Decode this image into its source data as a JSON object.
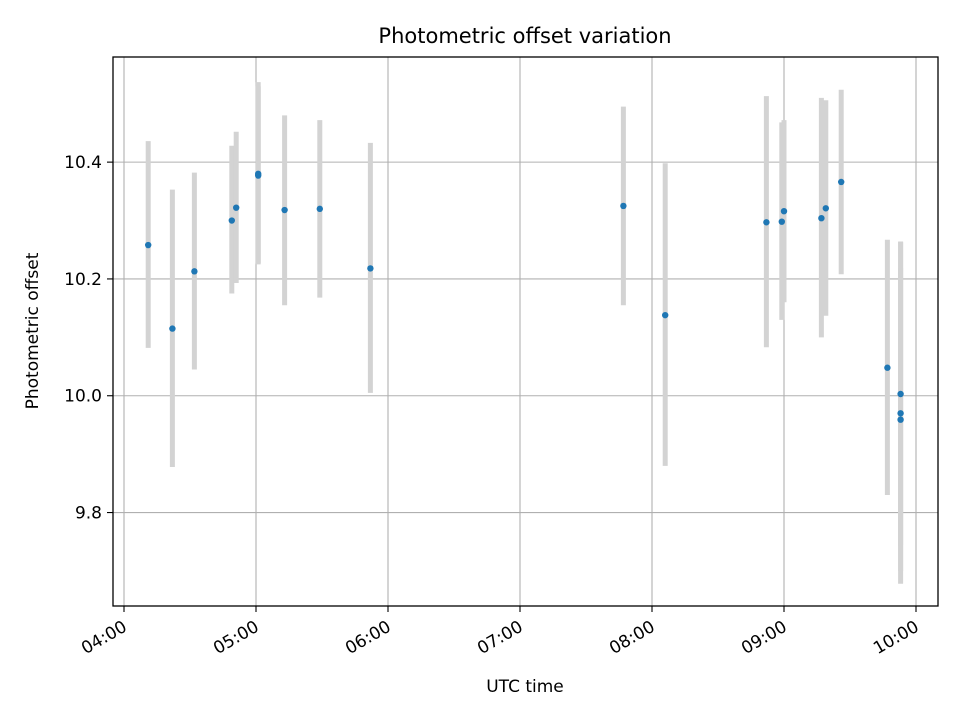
{
  "chart_data": {
    "type": "scatter",
    "title": "Photometric offset variation",
    "xlabel": "UTC time",
    "ylabel": "Photometric offset",
    "xlim": [
      "03:55",
      "10:10"
    ],
    "ylim": [
      9.64,
      10.58
    ],
    "x_ticks": [
      "04:00",
      "05:00",
      "06:00",
      "07:00",
      "08:00",
      "09:00",
      "10:00"
    ],
    "y_ticks": [
      "9.8",
      "10.0",
      "10.2",
      "10.4"
    ],
    "grid": true,
    "point_color": "#1f77b4",
    "errorbar_color": "#d3d3d3",
    "points": [
      {
        "time": "04:11",
        "value": 10.258,
        "low": 10.082,
        "high": 10.436
      },
      {
        "time": "04:22",
        "value": 10.115,
        "low": 9.878,
        "high": 10.353
      },
      {
        "time": "04:32",
        "value": 10.213,
        "low": 10.045,
        "high": 10.382
      },
      {
        "time": "04:49",
        "value": 10.3,
        "low": 10.175,
        "high": 10.428
      },
      {
        "time": "04:51",
        "value": 10.322,
        "low": 10.193,
        "high": 10.452
      },
      {
        "time": "05:01",
        "value": 10.38,
        "low": 10.225,
        "high": 10.537
      },
      {
        "time": "05:01",
        "value": 10.377,
        "low": 10.227,
        "high": 10.53
      },
      {
        "time": "05:13",
        "value": 10.318,
        "low": 10.155,
        "high": 10.48
      },
      {
        "time": "05:29",
        "value": 10.32,
        "low": 10.168,
        "high": 10.472
      },
      {
        "time": "05:52",
        "value": 10.218,
        "low": 10.005,
        "high": 10.433
      },
      {
        "time": "07:47",
        "value": 10.325,
        "low": 10.155,
        "high": 10.495
      },
      {
        "time": "08:06",
        "value": 10.138,
        "low": 9.88,
        "high": 10.398
      },
      {
        "time": "08:52",
        "value": 10.297,
        "low": 10.083,
        "high": 10.513
      },
      {
        "time": "08:59",
        "value": 10.298,
        "low": 10.13,
        "high": 10.468
      },
      {
        "time": "09:00",
        "value": 10.316,
        "low": 10.16,
        "high": 10.472
      },
      {
        "time": "09:17",
        "value": 10.304,
        "low": 10.1,
        "high": 10.51
      },
      {
        "time": "09:19",
        "value": 10.321,
        "low": 10.137,
        "high": 10.506
      },
      {
        "time": "09:26",
        "value": 10.366,
        "low": 10.208,
        "high": 10.524
      },
      {
        "time": "09:47",
        "value": 10.048,
        "low": 9.83,
        "high": 10.267
      },
      {
        "time": "09:53",
        "value": 10.003,
        "low": 9.744,
        "high": 10.263
      },
      {
        "time": "09:53",
        "value": 9.97,
        "low": 9.678,
        "high": 10.264
      },
      {
        "time": "09:53",
        "value": 9.959,
        "low": 9.7,
        "high": 10.218
      }
    ]
  }
}
